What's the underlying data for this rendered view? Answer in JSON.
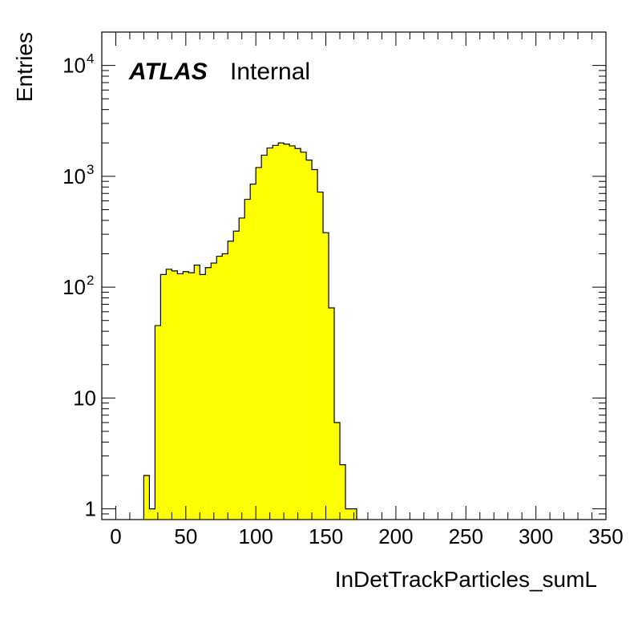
{
  "chart_data": {
    "type": "histogram",
    "title": "",
    "xlabel": "InDetTrackParticles_sumL",
    "ylabel": "Entries",
    "xlim": [
      -10,
      350
    ],
    "ylim": [
      0.8,
      20000
    ],
    "yscale": "log",
    "bin_width": 4,
    "bin_starts": [
      20,
      24,
      28,
      32,
      36,
      40,
      44,
      48,
      52,
      56,
      60,
      64,
      68,
      72,
      76,
      80,
      84,
      88,
      92,
      96,
      100,
      104,
      108,
      112,
      116,
      120,
      124,
      128,
      132,
      136,
      140,
      144,
      148,
      152,
      156,
      160,
      164,
      168
    ],
    "values": [
      2,
      1,
      45,
      130,
      145,
      140,
      132,
      138,
      135,
      158,
      130,
      150,
      165,
      190,
      200,
      260,
      320,
      420,
      620,
      850,
      1200,
      1550,
      1800,
      1900,
      2000,
      1950,
      1880,
      1780,
      1650,
      1400,
      1150,
      720,
      310,
      65,
      6,
      2.5,
      1,
      1
    ],
    "fill_color": "#ffff00",
    "line_color": "#000000",
    "x_ticks": [
      0,
      50,
      100,
      150,
      200,
      250,
      300,
      350
    ],
    "x_tick_labels": [
      "0",
      "50",
      "100",
      "150",
      "200",
      "250",
      "300",
      "350"
    ],
    "y_ticks": [
      1,
      10,
      100,
      1000,
      10000
    ],
    "y_tick_labels": [
      {
        "base": "1",
        "exp": ""
      },
      {
        "base": "10",
        "exp": ""
      },
      {
        "base": "10",
        "exp": "2"
      },
      {
        "base": "10",
        "exp": "3"
      },
      {
        "base": "10",
        "exp": "4"
      }
    ],
    "annotations": [
      {
        "text": "ATLAS",
        "style": "bold-italic"
      },
      {
        "text": "Internal",
        "style": "normal"
      }
    ],
    "grid": false,
    "legend": "none"
  }
}
